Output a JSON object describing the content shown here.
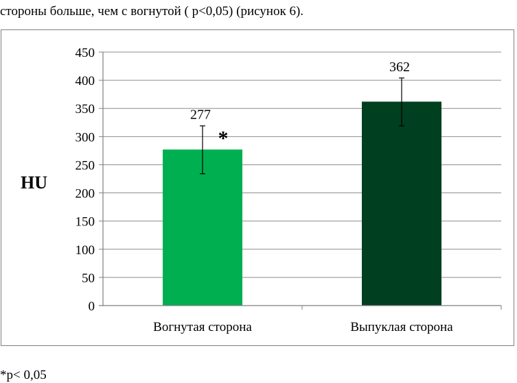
{
  "lead_text": "стороны больше, чем с вогнутой ( p<0,05) (рисунок 6).",
  "footnote": "*p< 0,05",
  "chart_data": {
    "type": "bar",
    "categories": [
      "Вогнутая сторона",
      "Выпуклая сторона"
    ],
    "values": [
      277,
      362
    ],
    "error_low": [
      234,
      319
    ],
    "error_high": [
      319,
      404
    ],
    "data_labels": [
      "277",
      "362"
    ],
    "significance_marks": [
      "*",
      ""
    ],
    "ylabel": "HU",
    "ylim": [
      0,
      450
    ],
    "yticks": [
      0,
      50,
      100,
      150,
      200,
      250,
      300,
      350,
      400,
      450
    ],
    "grid": true,
    "legend": "none",
    "colors": [
      "#00b050",
      "#003f1f"
    ]
  }
}
